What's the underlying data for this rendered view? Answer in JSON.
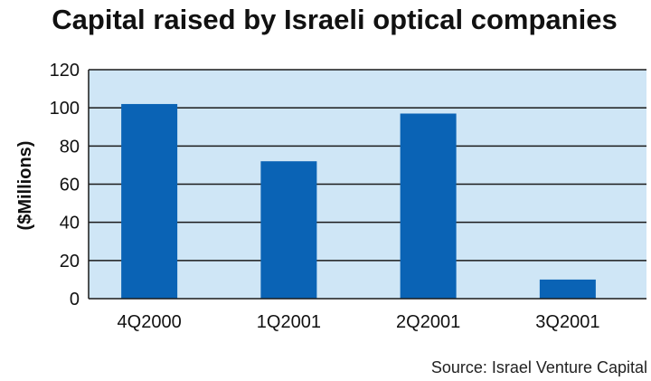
{
  "chart_data": {
    "type": "bar",
    "title": "Capital raised by Israeli optical companies",
    "ylabel": "($Millions)",
    "xlabel": "",
    "categories": [
      "4Q2000",
      "1Q2001",
      "2Q2001",
      "3Q2001"
    ],
    "values": [
      102,
      72,
      97,
      10
    ],
    "ylim": [
      0,
      120
    ],
    "yticks": [
      0,
      20,
      40,
      60,
      80,
      100,
      120
    ],
    "grid": true,
    "legend": "none",
    "source": "Source: Israel Venture Capital"
  },
  "colors": {
    "bar": "#0a63b5",
    "plot_background": "#cfe6f6",
    "gridline": "#1a1a1a",
    "axis": "#1a1a1a"
  }
}
